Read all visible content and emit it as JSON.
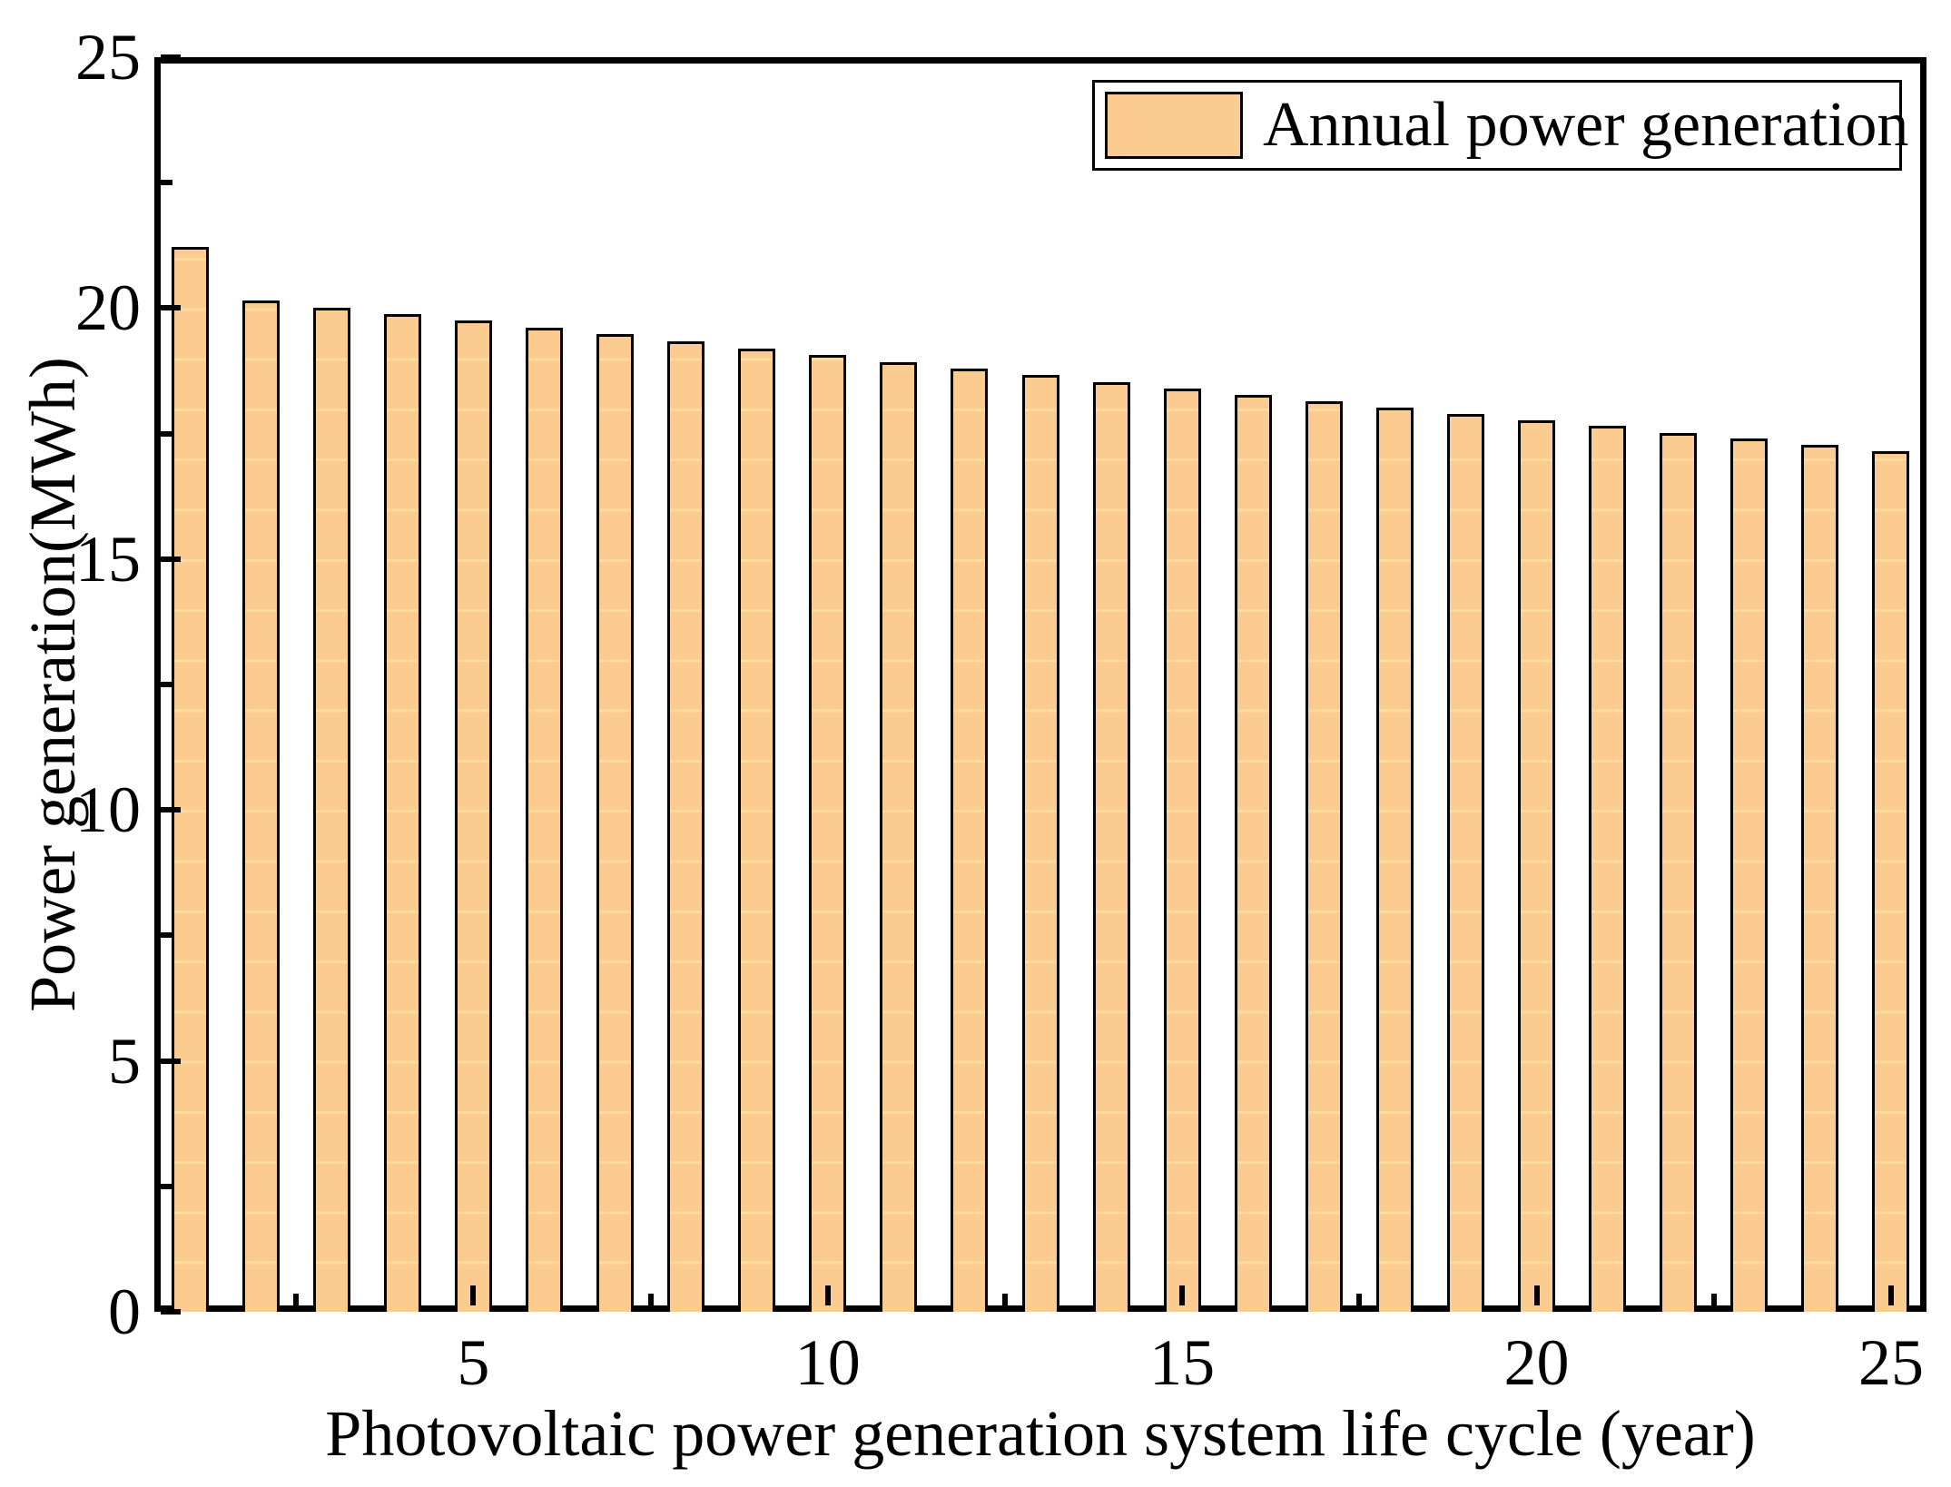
{
  "chart_data": {
    "type": "bar",
    "title": "",
    "xlabel": "Photovoltaic power generation system life cycle (year)",
    "ylabel": "Power generation(MWh)",
    "legend": {
      "label": "Annual power generation",
      "position": "upper right"
    },
    "x": [
      1,
      2,
      3,
      4,
      5,
      6,
      7,
      8,
      9,
      10,
      11,
      12,
      13,
      14,
      15,
      16,
      17,
      18,
      19,
      20,
      21,
      22,
      23,
      24,
      25
    ],
    "values": [
      21.22,
      20.15,
      20.01,
      19.88,
      19.75,
      19.61,
      19.48,
      19.34,
      19.2,
      19.06,
      18.93,
      18.8,
      18.66,
      18.53,
      18.4,
      18.27,
      18.14,
      18.01,
      17.89,
      17.77,
      17.65,
      17.52,
      17.4,
      17.27,
      17.15
    ],
    "xlim": [
      0.5,
      25.5
    ],
    "ylim": [
      0,
      25
    ],
    "x_major_ticks": [
      5,
      10,
      15,
      20,
      25
    ],
    "x_minor_ticks": [
      2.5,
      7.5,
      12.5,
      17.5,
      22.5
    ],
    "y_major_ticks": [
      0,
      5,
      10,
      15,
      20,
      25
    ],
    "y_minor_ticks": [
      2.5,
      7.5,
      12.5,
      17.5,
      22.5
    ],
    "grid": false,
    "legend_position": "upper right",
    "bar_fill_color": "#FBCB90",
    "bar_inner_line_color": "#FFDC9E",
    "bar_edge_color": "#000000",
    "axis_color": "#000000",
    "background_color": "#FFFFFF"
  }
}
